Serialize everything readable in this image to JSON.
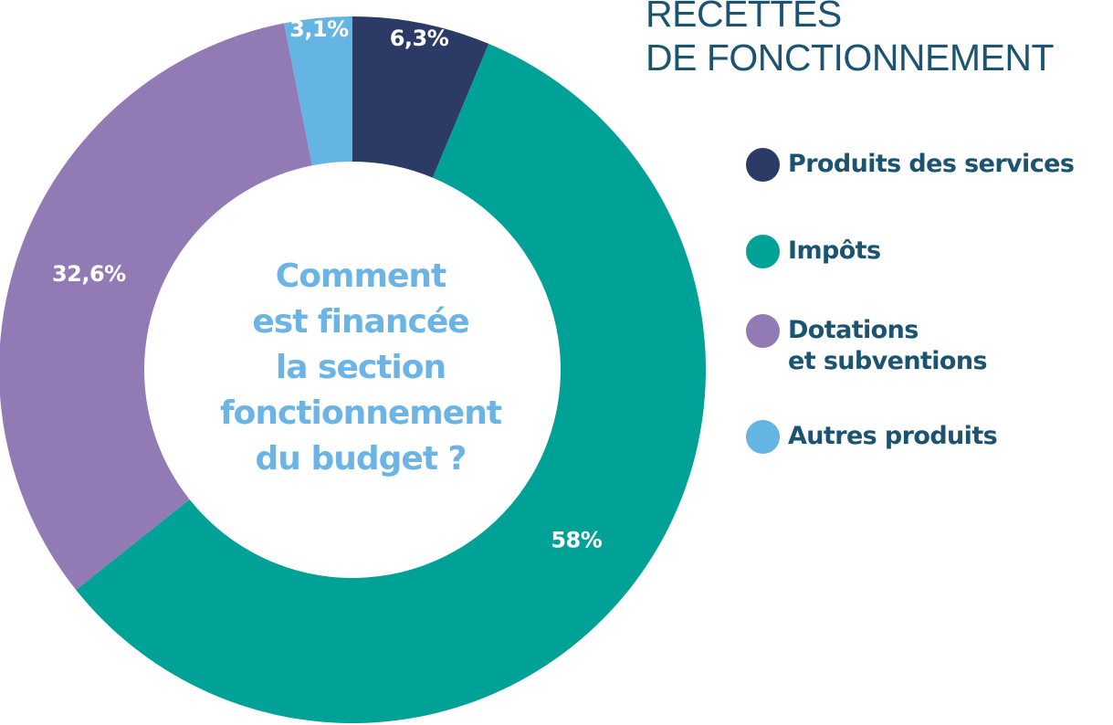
{
  "title": {
    "line1": "RECETTES",
    "line2": "DE FONCTIONNEMENT"
  },
  "center_text": [
    "Comment",
    "est financée",
    "la section",
    "fonctionnement",
    "du budget ?"
  ],
  "legend": [
    {
      "label": "Produits des services",
      "color": "#2c3a66"
    },
    {
      "label": "Impôts",
      "color": "#00a197"
    },
    {
      "label": "Dotations",
      "label2": "et subventions",
      "color": "#927ab5"
    },
    {
      "label": "Autres produits",
      "color": "#64b4e4"
    }
  ],
  "chart_data": {
    "type": "pie",
    "variant": "donut",
    "title": "RECETTES DE FONCTIONNEMENT",
    "categories": [
      "Produits des services",
      "Impôts",
      "Dotations et subventions",
      "Autres produits"
    ],
    "values": [
      6.3,
      58,
      32.6,
      3.1
    ],
    "value_labels": [
      "6,3%",
      "58%",
      "32,6%",
      "3,1%"
    ],
    "colors": [
      "#2c3a66",
      "#00a197",
      "#927ab5",
      "#64b4e4"
    ],
    "start": "top, clockwise",
    "legend_position": "right"
  }
}
